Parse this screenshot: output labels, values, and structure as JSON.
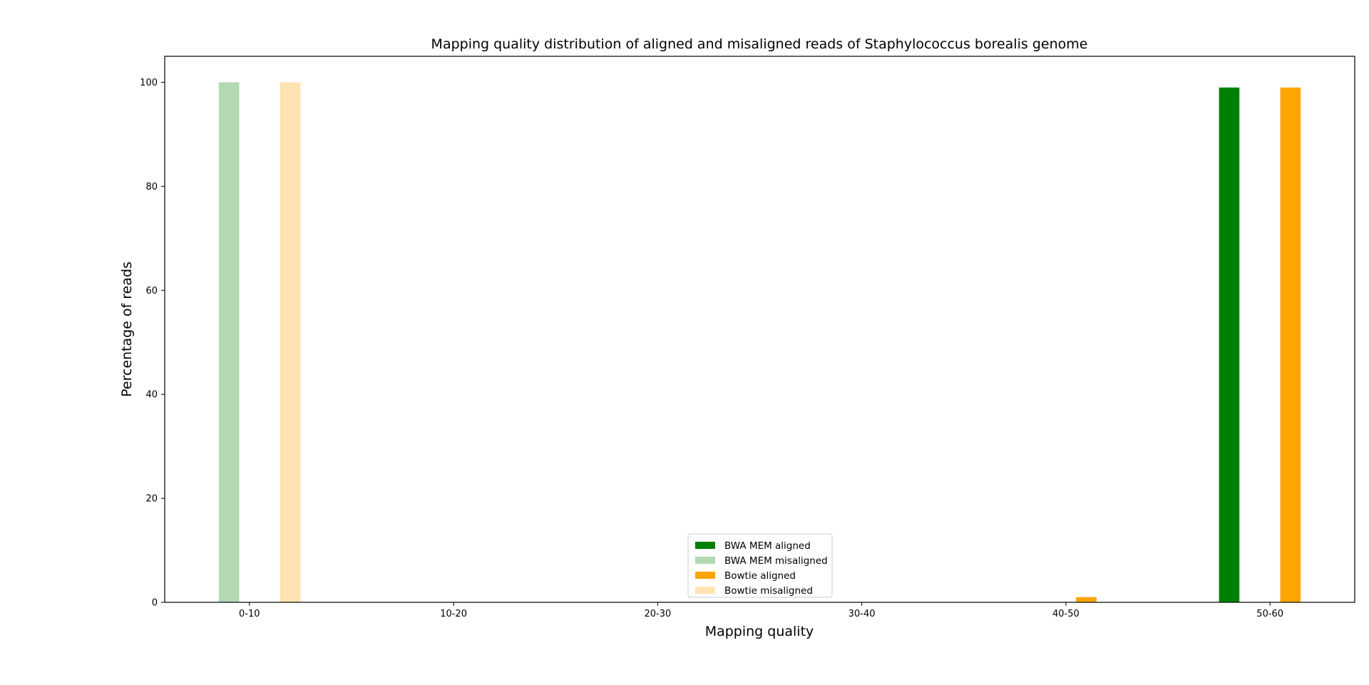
{
  "chart_data": {
    "type": "bar",
    "title": "Mapping quality distribution of aligned and misaligned reads of Staphylococcus borealis genome",
    "xlabel": "Mapping quality",
    "ylabel": "Percentage of reads",
    "categories": [
      "0-10",
      "10-20",
      "20-30",
      "30-40",
      "40-50",
      "50-60"
    ],
    "ylim": [
      0,
      105
    ],
    "yticks": [
      0,
      20,
      40,
      60,
      80,
      100
    ],
    "grid": false,
    "legend_position": "bottom-center",
    "series": [
      {
        "name": "BWA MEM aligned",
        "color": "#008000",
        "alpha": 1.0,
        "values": [
          0,
          0,
          0,
          0,
          0,
          99
        ]
      },
      {
        "name": "BWA MEM misaligned",
        "color": "#008000",
        "alpha": 0.3,
        "values": [
          100,
          0,
          0,
          0,
          0,
          0
        ]
      },
      {
        "name": "Bowtie aligned",
        "color": "#FFA500",
        "alpha": 1.0,
        "values": [
          0,
          0,
          0,
          0,
          1,
          99
        ]
      },
      {
        "name": "Bowtie misaligned",
        "color": "#FFA500",
        "alpha": 0.3,
        "values": [
          100,
          0,
          0,
          0,
          0,
          0
        ]
      }
    ]
  }
}
